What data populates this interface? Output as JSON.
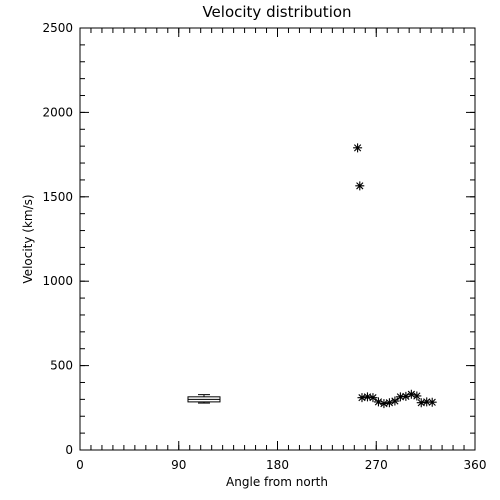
{
  "chart_data": {
    "type": "scatter",
    "title": "Velocity distribution",
    "xlabel": "Angle from north",
    "ylabel": "Velocity (km/s)",
    "xlim": [
      0,
      360
    ],
    "ylim": [
      0,
      2500
    ],
    "xticks": [
      0,
      90,
      180,
      270,
      360
    ],
    "yticks": [
      0,
      500,
      1000,
      1500,
      2000,
      2500
    ],
    "grid": false,
    "points": [
      {
        "x": 253,
        "y": 1790
      },
      {
        "x": 255,
        "y": 1565
      },
      {
        "x": 257,
        "y": 310
      },
      {
        "x": 262,
        "y": 315
      },
      {
        "x": 267,
        "y": 310
      },
      {
        "x": 272,
        "y": 285
      },
      {
        "x": 277,
        "y": 275
      },
      {
        "x": 282,
        "y": 280
      },
      {
        "x": 287,
        "y": 290
      },
      {
        "x": 292,
        "y": 315
      },
      {
        "x": 297,
        "y": 318
      },
      {
        "x": 302,
        "y": 330
      },
      {
        "x": 307,
        "y": 320
      },
      {
        "x": 311,
        "y": 280
      },
      {
        "x": 316,
        "y": 285
      },
      {
        "x": 321,
        "y": 283
      }
    ],
    "boxplot": {
      "x": 113,
      "median": 300,
      "q1": 285,
      "q3": 315,
      "whisker_low": 278,
      "whisker_high": 328
    }
  }
}
